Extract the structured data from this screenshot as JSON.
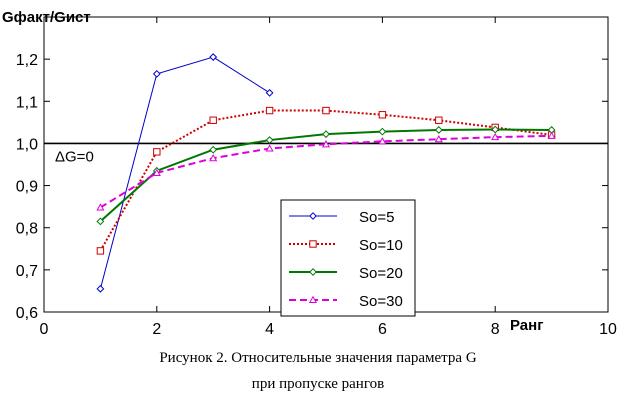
{
  "chart_data": {
    "type": "line",
    "title": "",
    "ylabel": "Gфакт/Gист",
    "xlabel": "Ранг",
    "xlim": [
      0,
      10
    ],
    "ylim": [
      0.6,
      1.3
    ],
    "x_ticks": [
      "0",
      "2",
      "4",
      "6",
      "8",
      "10"
    ],
    "y_ticks": [
      "0,6",
      "0,7",
      "0,8",
      "0,9",
      "1,0",
      "1,1",
      "1,2"
    ],
    "reference_line": {
      "y": 1.0,
      "label": "ΔG=0"
    },
    "legend_position": "inside-bottom-center",
    "grid": false,
    "series": [
      {
        "name": "So=5",
        "color": "#0000CC",
        "style": "solid",
        "marker": "diamond",
        "x": [
          1,
          2,
          3,
          4
        ],
        "y": [
          0.655,
          1.165,
          1.205,
          1.12
        ]
      },
      {
        "name": "So=10",
        "color": "#CC0000",
        "style": "dotted",
        "marker": "square",
        "x": [
          1,
          2,
          3,
          4,
          5,
          6,
          7,
          8,
          9
        ],
        "y": [
          0.745,
          0.98,
          1.055,
          1.078,
          1.078,
          1.068,
          1.055,
          1.038,
          1.02
        ]
      },
      {
        "name": "So=20",
        "color": "#007700",
        "style": "solid",
        "marker": "diamond",
        "x": [
          1,
          2,
          3,
          4,
          5,
          6,
          7,
          8,
          9
        ],
        "y": [
          0.815,
          0.935,
          0.985,
          1.008,
          1.022,
          1.028,
          1.032,
          1.033,
          1.032
        ]
      },
      {
        "name": "So=30",
        "color": "#DD00DD",
        "style": "dashed",
        "marker": "triangle",
        "x": [
          1,
          2,
          3,
          4,
          5,
          6,
          7,
          8,
          9
        ],
        "y": [
          0.848,
          0.93,
          0.965,
          0.988,
          0.998,
          1.005,
          1.01,
          1.015,
          1.018
        ]
      }
    ]
  },
  "caption": {
    "line1": "Рисунок 2. Относительные значения параметра G",
    "line2": "при пропуске рангов"
  }
}
